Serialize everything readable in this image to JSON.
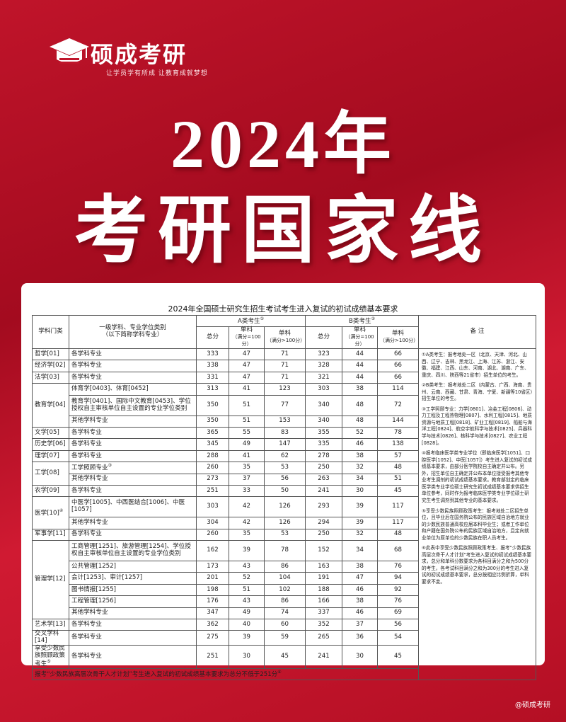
{
  "header": {
    "brand": "硕成考研",
    "slogan": "让学员学有所成  让教育成就梦想",
    "title_line1": "2024年",
    "title_line2": "考研国家线"
  },
  "table": {
    "title": "2024年全国硕士研究生招生考试考生进入复试的初试成绩基本要求",
    "head": {
      "category": "学科门类",
      "subject_line1": "一级学科、专业学位类别",
      "subject_line2": "（以下简称学科专业）",
      "group_a": "A类考生",
      "group_a_note": "①",
      "group_b": "B类考生",
      "group_b_note": "②",
      "remarks": "备  注",
      "total": "总分",
      "single_100": "单科",
      "single_100_sub": "（满分=100分）",
      "single_over": "单科",
      "single_over_sub": "（满分>100分）"
    },
    "groups": [
      {
        "category": "哲学[01]",
        "rows": [
          {
            "subject": "各学科专业",
            "a": [
              333,
              47,
              71
            ],
            "b": [
              323,
              44,
              66
            ]
          }
        ]
      },
      {
        "category": "经济学[02]",
        "rows": [
          {
            "subject": "各学科专业",
            "a": [
              338,
              47,
              71
            ],
            "b": [
              328,
              44,
              66
            ]
          }
        ]
      },
      {
        "category": "法学[03]",
        "rows": [
          {
            "subject": "各学科专业",
            "a": [
              331,
              47,
              71
            ],
            "b": [
              321,
              44,
              66
            ]
          }
        ]
      },
      {
        "category": "教育学[04]",
        "rows": [
          {
            "subject": "体育学[0403]、体育[0452]",
            "a": [
              313,
              41,
              123
            ],
            "b": [
              303,
              38,
              114
            ]
          },
          {
            "subject": "教育学[0401]、国际中文教育[0453]、学位授权自主审核单位自主设置的专业学位类别",
            "a": [
              350,
              51,
              77
            ],
            "b": [
              340,
              48,
              72
            ]
          },
          {
            "subject": "其他学科专业",
            "a": [
              350,
              51,
              153
            ],
            "b": [
              340,
              48,
              144
            ]
          }
        ]
      },
      {
        "category": "文学[05]",
        "rows": [
          {
            "subject": "各学科专业",
            "a": [
              365,
              55,
              83
            ],
            "b": [
              355,
              52,
              78
            ]
          }
        ]
      },
      {
        "category": "历史学[06]",
        "rows": [
          {
            "subject": "各学科专业",
            "a": [
              345,
              49,
              147
            ],
            "b": [
              335,
              46,
              138
            ]
          }
        ]
      },
      {
        "category": "理学[07]",
        "rows": [
          {
            "subject": "各学科专业",
            "a": [
              288,
              41,
              62
            ],
            "b": [
              278,
              38,
              57
            ]
          }
        ]
      },
      {
        "category": "工学[08]",
        "rows": [
          {
            "subject": "工学照顾专业",
            "note": "③",
            "a": [
              260,
              35,
              53
            ],
            "b": [
              250,
              32,
              48
            ]
          },
          {
            "subject": "其他学科专业",
            "a": [
              273,
              37,
              56
            ],
            "b": [
              263,
              34,
              51
            ]
          }
        ]
      },
      {
        "category": "农学[09]",
        "rows": [
          {
            "subject": "各学科专业",
            "a": [
              251,
              33,
              50
            ],
            "b": [
              241,
              30,
              45
            ]
          }
        ]
      },
      {
        "category": "医学[10]",
        "note": "④",
        "rows": [
          {
            "subject": "中医学[1005]、中西医结合[1006]、中医[1057]",
            "a": [
              303,
              42,
              126
            ],
            "b": [
              293,
              39,
              117
            ]
          },
          {
            "subject": "其他学科专业",
            "a": [
              304,
              42,
              126
            ],
            "b": [
              294,
              39,
              117
            ]
          }
        ]
      },
      {
        "category": "军事学[11]",
        "rows": [
          {
            "subject": "各学科专业",
            "a": [
              260,
              35,
              53
            ],
            "b": [
              250,
              32,
              48
            ]
          }
        ]
      },
      {
        "category": "管理学[12]",
        "rows": [
          {
            "subject": "工商管理[1251]、旅游管理[1254]、学位授权自主审核单位自主设置的专业学位类别",
            "a": [
              162,
              39,
              78
            ],
            "b": [
              152,
              34,
              68
            ]
          },
          {
            "subject": "公共管理[1252]",
            "a": [
              173,
              43,
              86
            ],
            "b": [
              163,
              38,
              76
            ]
          },
          {
            "subject": "会计[1253]、审计[1257]",
            "a": [
              201,
              52,
              104
            ],
            "b": [
              191,
              47,
              94
            ]
          },
          {
            "subject": "图书情报[1255]",
            "a": [
              198,
              51,
              102
            ],
            "b": [
              188,
              46,
              92
            ]
          },
          {
            "subject": "工程管理[1256]",
            "a": [
              176,
              43,
              86
            ],
            "b": [
              166,
              38,
              76
            ]
          },
          {
            "subject": "其他学科专业",
            "a": [
              347,
              49,
              74
            ],
            "b": [
              337,
              46,
              69
            ]
          }
        ]
      },
      {
        "category": "艺术学[13]",
        "rows": [
          {
            "subject": "各学科专业",
            "a": [
              362,
              40,
              60
            ],
            "b": [
              352,
              37,
              56
            ]
          }
        ]
      },
      {
        "category": "交叉学科[14]",
        "rows": [
          {
            "subject": "各学科专业",
            "a": [
              275,
              39,
              59
            ],
            "b": [
              265,
              36,
              54
            ]
          }
        ]
      },
      {
        "category": "享受少数民族照顾政策考生",
        "note": "⑤",
        "rows": [
          {
            "subject": "各学科专业",
            "a": [
              251,
              30,
              45
            ],
            "b": [
              241,
              30,
              45
            ]
          }
        ]
      }
    ],
    "footer": "报考“少数民族高层次骨干人才计划”考生进入复试的初试成绩基本要求为总分不低于251分",
    "footer_note": "⑥",
    "remarks": [
      "①A类考生：报考地处一区（北京、天津、河北、山西、辽宁、吉林、黑龙江、上海、江苏、浙江、安徽、福建、江西、山东、河南、湖北、湖南、广东、重庆、四川、陕西等21省市）招生单位的考生。",
      "②B类考生：报考地处二区（内蒙古、广西、海南、贵州、云南、西藏、甘肃、青海、宁夏、新疆等10省区）招生单位的考生。",
      "③工学照顾专业：力学[0801]、冶金工程[0806]、动力工程及工程热物理[0807]、水利工程[0815]、地质资源与地质工程[0818]、矿业工程[0819]、船舶与海洋工程[0824]、航空宇航科学与技术[0825]、兵器科学与技术[0826]、核科学与技术[0827]、农业工程[0828]。",
      "④报考临床医学类专业学位（即临床医学[1051]、口腔医学[1052]、中医[1057]）考生进入复试的初试成绩基本要求，由部分医学院校自主确定并公布。另外，招生单位自主确定并公布本单位接受报考其他专业考生调剂的初试成绩基本要求。教育部划定的临床医学类专业学位硕士研究生初试成绩基本要求供招生单位参考，同时作为报考临床医学类专业学位硕士研究生考生调剂到其他专业的基本要求。",
      "⑤享受少数民族照顾政策考生：报考地处二区招生单位，且毕业后在国务院公布的民族区域自治地方就业的少数民族普通高校应届本科毕业生；或者工作单位和户籍在国务院公布的民族区域自治地方，且定向就业单位为原单位的少数民族在职人员考生。",
      "⑥此表中享受少数民族照顾政策考生、报考“少数民族高层次骨干人才计划”考生进入复试的初试成绩基本要求，总分和单科分数要求为各科目满分之和为500分的考生，各考试科目满分之和为300分的考生进入复试的初试成绩基本要求，总分按相应比例折算，单科要求不变。"
    ],
    "watermark": "@硕成考研"
  }
}
